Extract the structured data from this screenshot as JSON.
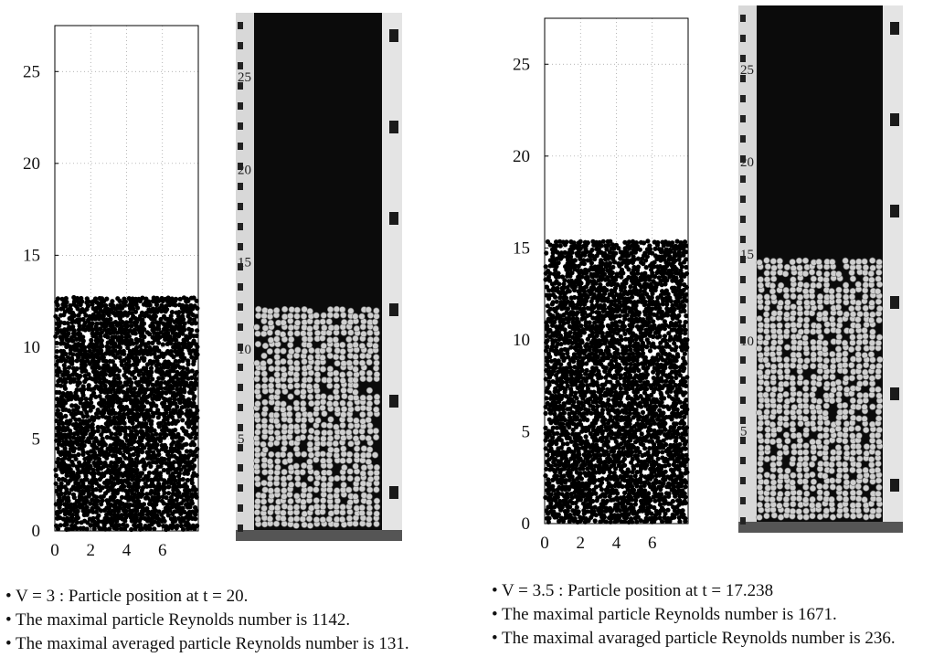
{
  "left": {
    "sim": {
      "type": "scatter",
      "x_ticks": [
        "0",
        "2",
        "4",
        "6"
      ],
      "y_ticks": [
        "0",
        "5",
        "10",
        "15",
        "20",
        "25"
      ],
      "xlim": [
        0,
        8
      ],
      "ylim": [
        0,
        27.5
      ],
      "bed_height": 12.8,
      "seed": 11
    },
    "photo": {
      "scale_labels": [
        "25",
        "20",
        "15",
        "10",
        "5"
      ],
      "bed_top_fraction": 0.555
    },
    "caption": [
      "• V = 3 : Particle position at t = 20.",
      "• The maximal particle Reynolds number is 1142.",
      "• The maximal averaged particle Reynolds number is 131."
    ]
  },
  "right": {
    "sim": {
      "type": "scatter",
      "x_ticks": [
        "0",
        "2",
        "4",
        "6"
      ],
      "y_ticks": [
        "0",
        "5",
        "10",
        "15",
        "20",
        "25"
      ],
      "xlim": [
        0,
        8
      ],
      "ylim": [
        0,
        27.5
      ],
      "bed_height": 15.4,
      "seed": 37
    },
    "photo": {
      "scale_labels": [
        "25",
        "20",
        "15",
        "10",
        "5"
      ],
      "bed_top_fraction": 0.475
    },
    "caption": [
      "• V = 3.5 : Particle position at t = 17.238",
      "• The maximal particle Reynolds number is 1671.",
      "• The maximal avaraged particle Reynolds number is 236."
    ]
  },
  "colors": {
    "particle": "#000000",
    "grid": "#9a9a9a",
    "photo_dark": "#0b0b0b",
    "photo_bead": "#cfcfcf",
    "photo_wall": "#b8b8b8"
  }
}
